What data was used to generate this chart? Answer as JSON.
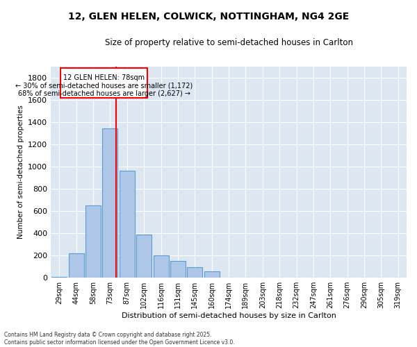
{
  "title1": "12, GLEN HELEN, COLWICK, NOTTINGHAM, NG4 2GE",
  "title2": "Size of property relative to semi-detached houses in Carlton",
  "xlabel": "Distribution of semi-detached houses by size in Carlton",
  "ylabel": "Number of semi-detached properties",
  "bar_labels": [
    "29sqm",
    "44sqm",
    "58sqm",
    "73sqm",
    "87sqm",
    "102sqm",
    "116sqm",
    "131sqm",
    "145sqm",
    "160sqm",
    "174sqm",
    "189sqm",
    "203sqm",
    "218sqm",
    "232sqm",
    "247sqm",
    "261sqm",
    "276sqm",
    "290sqm",
    "305sqm",
    "319sqm"
  ],
  "bar_values": [
    10,
    220,
    650,
    1340,
    960,
    390,
    200,
    150,
    95,
    60,
    0,
    0,
    0,
    0,
    0,
    0,
    0,
    0,
    0,
    0,
    0
  ],
  "bar_color": "#aec6e8",
  "bar_edge_color": "#5b9bd5",
  "annotation_title": "12 GLEN HELEN: 78sqm",
  "annotation_line1": "← 30% of semi-detached houses are smaller (1,172)",
  "annotation_line2": "68% of semi-detached houses are larger (2,627) →",
  "ylim": [
    0,
    1900
  ],
  "yticks": [
    0,
    200,
    400,
    600,
    800,
    1000,
    1200,
    1400,
    1600,
    1800
  ],
  "bg_color": "#dde7f2",
  "footer1": "Contains HM Land Registry data © Crown copyright and database right 2025.",
  "footer2": "Contains public sector information licensed under the Open Government Licence v3.0."
}
